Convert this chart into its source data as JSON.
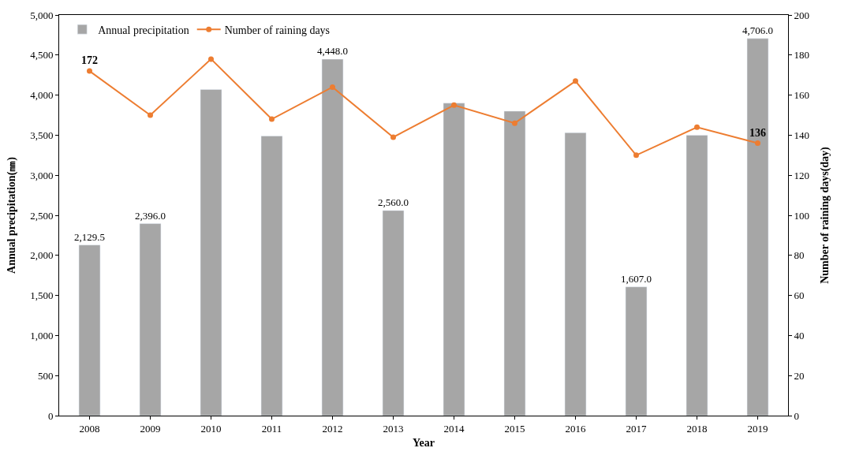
{
  "chart_data": {
    "type": "bar",
    "xlabel": "Year",
    "ylabel": "Annual precipitation(㎜)",
    "y2label": "Number of raining days(day)",
    "categories": [
      "2008",
      "2009",
      "2010",
      "2011",
      "2012",
      "2013",
      "2014",
      "2015",
      "2016",
      "2017",
      "2018",
      "2019"
    ],
    "series": [
      {
        "name": "Annual precipitation",
        "color": "#a6a6a6",
        "values": [
          2129.5,
          2396.0,
          4070,
          3490,
          4448.0,
          2560.0,
          3900,
          3800,
          3530,
          1607.0,
          3500,
          4706.0
        ],
        "value_labels": [
          "2,129.5",
          "2,396.0",
          null,
          null,
          "4,448.0",
          "2,560.0",
          null,
          null,
          null,
          "1,607.0",
          null,
          "4,706.0"
        ]
      },
      {
        "name": "Number of raining days",
        "type": "line",
        "axis": "y2",
        "color": "#ed7d31",
        "marker": "circle",
        "values": [
          172,
          150,
          178,
          148,
          164,
          139,
          155,
          146,
          167,
          130,
          144,
          136
        ],
        "value_labels": [
          "172",
          null,
          null,
          null,
          null,
          null,
          null,
          null,
          null,
          null,
          null,
          "136"
        ]
      }
    ],
    "ylim": [
      0,
      5000
    ],
    "yticks": [
      0,
      {
        "value": 500,
        "label": "500"
      },
      {
        "value": 1000,
        "label": "1,000"
      },
      {
        "value": 1500,
        "label": "1,500"
      },
      {
        "value": 2000,
        "label": "2,000"
      },
      {
        "value": 2500,
        "label": "2,500"
      },
      {
        "value": 3000,
        "label": "3,000"
      },
      {
        "value": 3500,
        "label": "3,500"
      },
      {
        "value": 4000,
        "label": "4,000"
      },
      {
        "value": 4500,
        "label": "4,500"
      },
      {
        "value": 5000,
        "label": "5,000"
      }
    ],
    "y2lim": [
      0,
      200
    ],
    "y2ticks": [
      0,
      20,
      40,
      60,
      80,
      100,
      120,
      140,
      160,
      180,
      200
    ],
    "legend": "top left"
  }
}
